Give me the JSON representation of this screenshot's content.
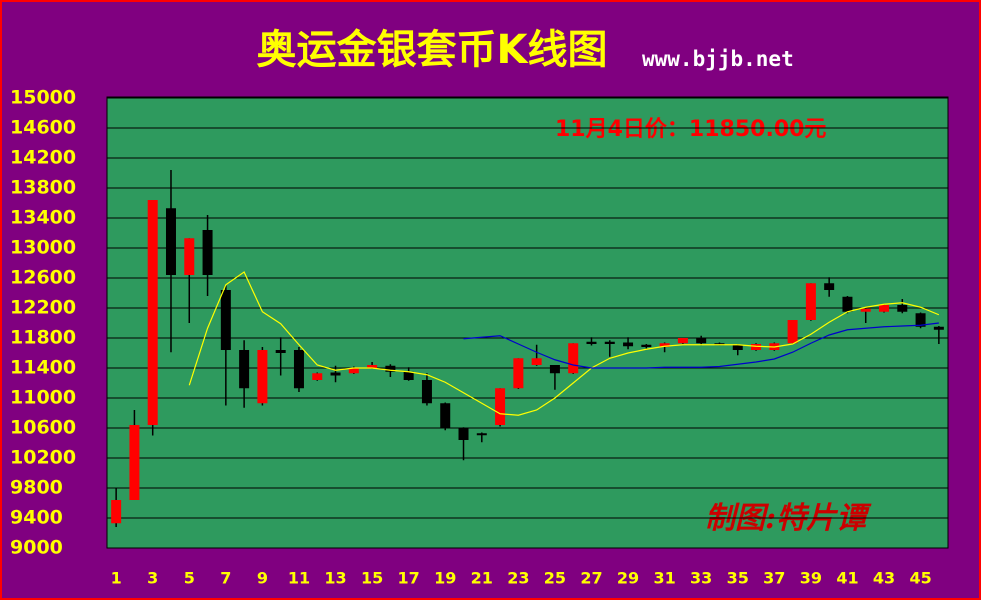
{
  "chart_data": {
    "type": "candlestick",
    "title": "奥运金银套币K线图",
    "subtitle": "www.bjjb.net",
    "annotation": "11月4日价：11850.00元",
    "credit": "制图:特片谭",
    "categories": [
      1,
      null,
      3,
      null,
      5,
      null,
      7,
      null,
      9,
      null,
      11,
      null,
      13,
      null,
      15,
      null,
      17,
      null,
      19,
      null,
      21,
      null,
      23,
      null,
      25,
      null,
      27,
      null,
      29,
      null,
      31,
      null,
      33,
      null,
      35,
      null,
      37,
      null,
      39,
      null,
      41,
      null,
      43,
      null,
      45,
      null
    ],
    "open": [
      9330,
      9640,
      10640,
      13530,
      12640,
      13240,
      12440,
      11640,
      10930,
      11640,
      11640,
      11240,
      11340,
      11330,
      11400,
      11430,
      11350,
      11240,
      10930,
      10600,
      10530,
      10640,
      11130,
      11440,
      11440,
      11330,
      11750,
      11750,
      11740,
      11710,
      11680,
      11730,
      11800,
      11730,
      11710,
      11640,
      11640,
      11730,
      12040,
      12530,
      12350,
      12150,
      12150,
      12240,
      12130,
      11950
    ],
    "close": [
      9640,
      10640,
      13640,
      12640,
      13130,
      12640,
      11640,
      11130,
      11640,
      11600,
      11130,
      11330,
      11300,
      11400,
      11440,
      11350,
      11240,
      10930,
      10600,
      10440,
      10510,
      11130,
      11530,
      11530,
      11330,
      11730,
      11720,
      11720,
      11690,
      11680,
      11730,
      11800,
      11730,
      11710,
      11640,
      11720,
      11730,
      12040,
      12530,
      12440,
      12150,
      12190,
      12240,
      12150,
      11950,
      11910
    ],
    "high": [
      9800,
      10840,
      13640,
      14040,
      13130,
      13440,
      12500,
      11770,
      11680,
      11810,
      11680,
      11340,
      11430,
      11420,
      11480,
      11450,
      11410,
      11330,
      10940,
      10610,
      10540,
      11130,
      11530,
      11710,
      11440,
      11730,
      11810,
      11770,
      11810,
      11720,
      11740,
      11800,
      11830,
      11740,
      11720,
      11730,
      11740,
      12040,
      12530,
      12610,
      12360,
      12200,
      12250,
      12320,
      12140,
      11960
    ],
    "low": [
      9280,
      9640,
      10500,
      11610,
      12000,
      12360,
      10900,
      10870,
      10900,
      11300,
      11080,
      11230,
      11210,
      11320,
      11390,
      11280,
      11230,
      10900,
      10570,
      10170,
      10410,
      10620,
      11120,
      11430,
      11110,
      11320,
      11700,
      11550,
      11650,
      11660,
      11610,
      11720,
      11700,
      11700,
      11570,
      11630,
      11630,
      11720,
      12030,
      12350,
      12130,
      12000,
      12140,
      12130,
      11930,
      11720
    ],
    "up_color": "#ff0000",
    "down_color": "#000000",
    "series": [
      {
        "color": "#ffff00",
        "values": [
          null,
          null,
          null,
          null,
          11170,
          11930,
          12510,
          12680,
          12150,
          11990,
          11710,
          11440,
          11370,
          11400,
          11400,
          11370,
          11350,
          11310,
          11210,
          11070,
          10930,
          10790,
          10770,
          10840,
          11000,
          11200,
          11400,
          11530,
          11600,
          11650,
          11690,
          11710,
          11710,
          11710,
          11710,
          11690,
          11680,
          11720,
          11850,
          12010,
          12150,
          12210,
          12250,
          12270,
          12210,
          12110
        ]
      },
      {
        "color": "#0000cc",
        "values": [
          null,
          null,
          null,
          null,
          null,
          null,
          null,
          null,
          null,
          null,
          null,
          null,
          null,
          null,
          null,
          null,
          null,
          null,
          null,
          11790,
          11810,
          11830,
          11720,
          11610,
          11510,
          11440,
          11400,
          11400,
          11400,
          11400,
          11410,
          11410,
          11410,
          11420,
          11450,
          11480,
          11520,
          11610,
          11730,
          11840,
          11910,
          11930,
          11950,
          11960,
          11970,
          12000
        ]
      }
    ],
    "ylim": [
      9000,
      15000
    ],
    "yticks": [
      9000,
      9400,
      9800,
      10200,
      10600,
      11000,
      11400,
      11800,
      12200,
      12600,
      13000,
      13400,
      13800,
      14200,
      14600,
      15000
    ],
    "grid": true
  }
}
